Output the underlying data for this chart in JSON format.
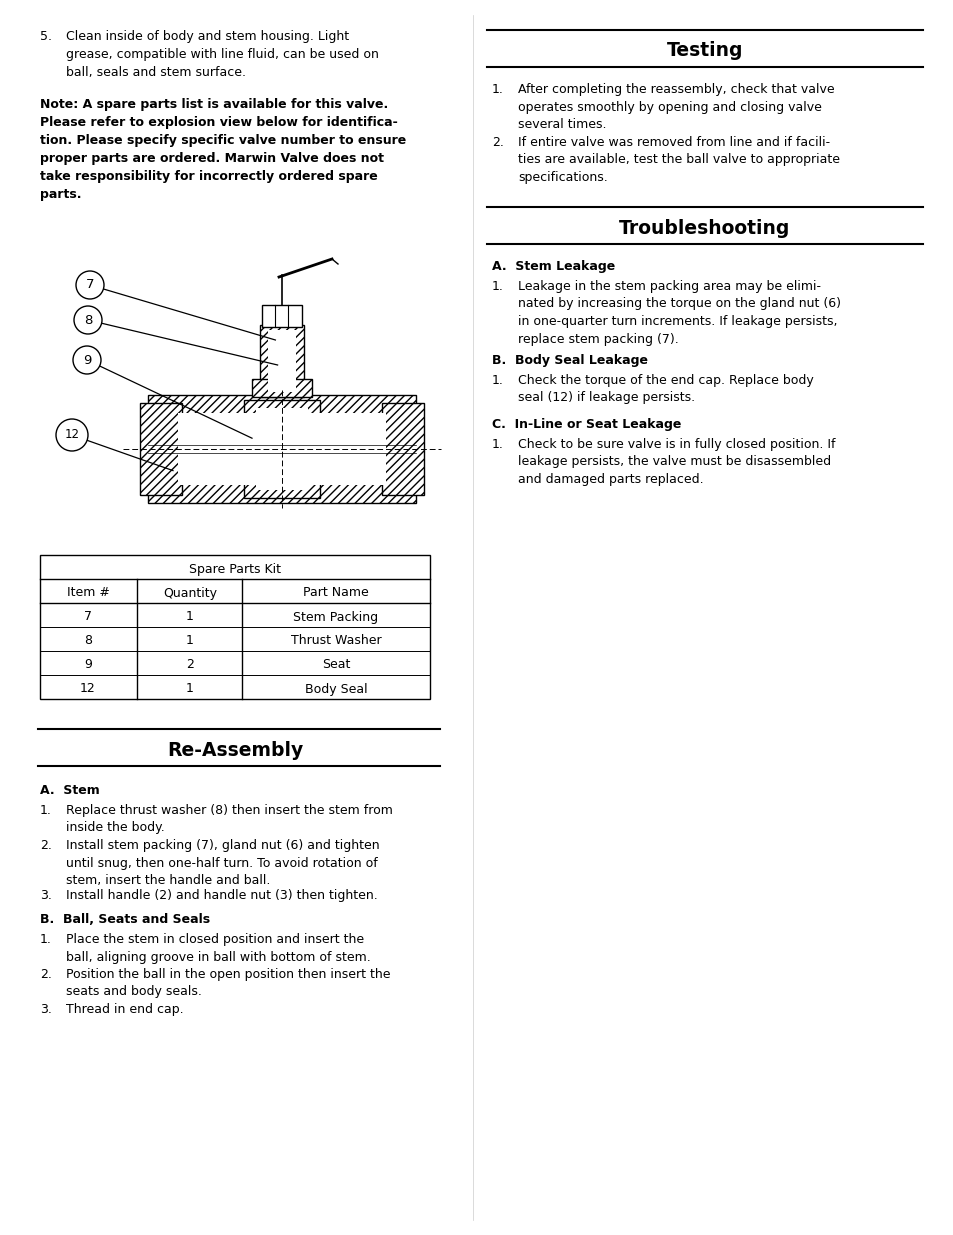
{
  "bg_color": "#ffffff",
  "body_fontsize": 9.0,
  "header_fontsize": 13.5,
  "text_color": "#000000",
  "table_header": "Spare Parts Kit",
  "table_cols": [
    "Item #",
    "Quantity",
    "Part Name"
  ],
  "table_rows": [
    [
      "7",
      "1",
      "Stem Packing"
    ],
    [
      "8",
      "1",
      "Thrust Washer"
    ],
    [
      "9",
      "2",
      "Seat"
    ],
    [
      "12",
      "1",
      "Body Seal"
    ]
  ],
  "reassembly_title": "Re-Assembly",
  "reassembly_a_header": "A.  Stem",
  "reassembly_a_items": [
    "Replace thrust washer (8) then insert the stem from\ninside the body.",
    "Install stem packing (7), gland nut (6) and tighten\nuntil snug, then one-half turn. To avoid rotation of\nstem, insert the handle and ball.",
    "Install handle (2) and handle nut (3) then tighten."
  ],
  "reassembly_b_header": "B.  Ball, Seats and Seals",
  "reassembly_b_items": [
    "Place the stem in closed position and insert the\nball, aligning groove in ball with bottom of stem.",
    "Position the ball in the open position then insert the\nseats and body seals.",
    "Thread in end cap."
  ],
  "testing_title": "Testing",
  "testing_items": [
    "After completing the reassembly, check that valve\noperates smoothly by opening and closing valve\nseveral times.",
    "If entire valve was removed from line and if facili-\nties are available, test the ball valve to appropriate\nspecifications."
  ],
  "troubleshooting_title": "Troubleshooting",
  "trouble_a_header": "A.  Stem Leakage",
  "trouble_a_items": [
    "Leakage in the stem packing area may be elimi-\nnated by increasing the torque on the gland nut (6)\nin one-quarter turn increments. If leakage persists,\nreplace stem packing (7)."
  ],
  "trouble_b_header": "B.  Body Seal Leakage",
  "trouble_b_items": [
    "Check the torque of the end cap. Replace body\nseal (12) if leakage persists."
  ],
  "trouble_c_header": "C.  In-Line or Seat Leakage",
  "trouble_c_items": [
    "Check to be sure valve is in fully closed position. If\nleakage persists, the valve must be disassembled\nand damaged parts replaced."
  ]
}
